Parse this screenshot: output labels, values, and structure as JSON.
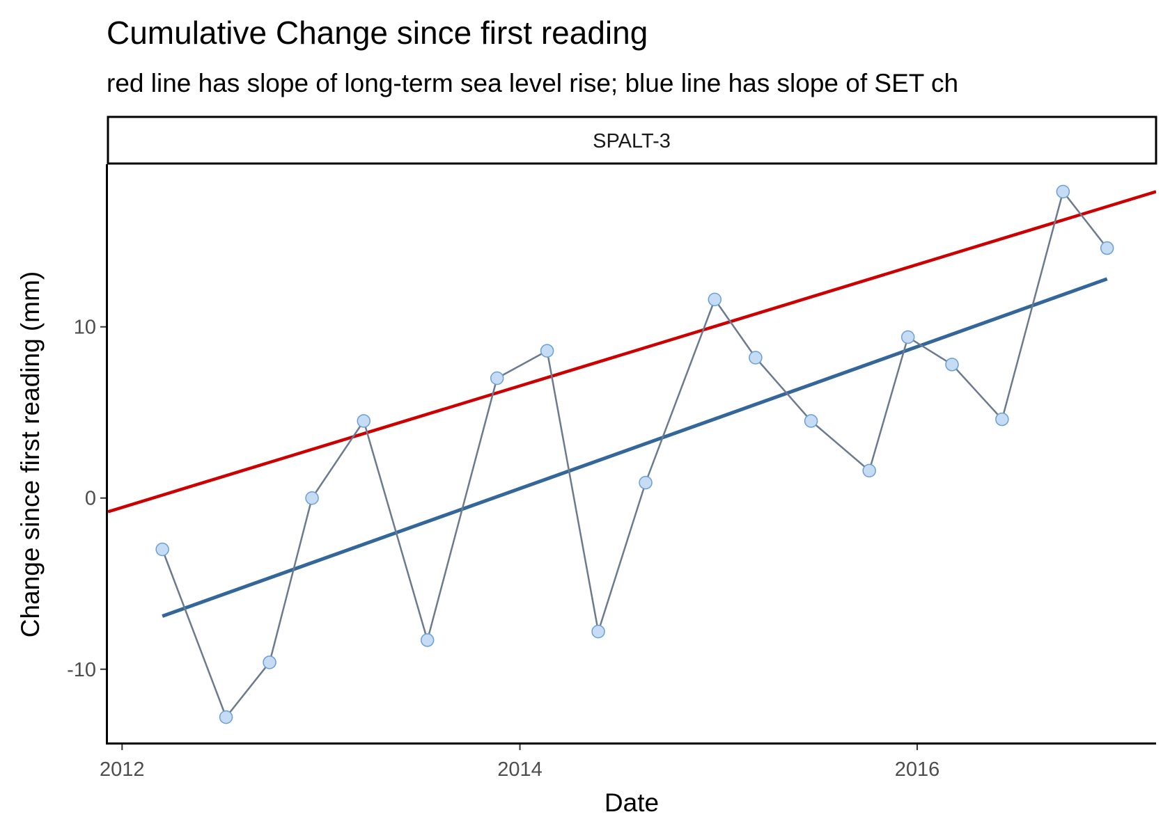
{
  "chart_data": {
    "type": "line",
    "title": "Cumulative Change since first reading",
    "subtitle": "red line has slope of long-term sea level rise; blue line has slope of SET ch",
    "facet_label": "SPALT-3",
    "xlabel": "Date",
    "ylabel": "Change since first reading (mm)",
    "x_ticks": [
      "2012",
      "2014",
      "2016"
    ],
    "y_ticks": [
      -10,
      0,
      10
    ],
    "xlim": [
      "2011-12-06",
      "2017-03-15"
    ],
    "ylim": [
      -14.4,
      19.5
    ],
    "grid": false,
    "legend": "none",
    "colors": {
      "readings_line": "#6b7a8f",
      "readings_point_fill": "#c6dcf5",
      "readings_point_stroke": "#6a9fd4",
      "sea_level_line": "#cc0000",
      "set_trend_line": "#336699",
      "panel_border": "#000000",
      "tick_text": "#4d4d4d"
    },
    "series": [
      {
        "x": [
          "2012-03-15",
          "2012-07-10",
          "2012-09-28",
          "2012-12-15",
          "2013-03-20",
          "2013-07-15",
          "2013-11-20",
          "2014-02-20",
          "2014-05-25",
          "2014-08-20",
          "2014-12-25",
          "2015-03-10",
          "2015-06-20",
          "2015-10-05",
          "2015-12-15",
          "2016-03-05",
          "2016-06-05",
          "2016-09-25",
          "2016-12-15"
        ],
        "y": [
          -3.0,
          -12.8,
          -9.6,
          0.0,
          4.5,
          -8.3,
          7.0,
          8.6,
          -7.8,
          0.9,
          11.6,
          8.2,
          4.5,
          1.6,
          9.4,
          7.8,
          4.6,
          17.9,
          14.6
        ]
      },
      {
        "x": [
          "2011-12-06",
          "2017-03-15"
        ],
        "y": [
          -0.8,
          17.9
        ]
      },
      {
        "x": [
          "2012-03-15",
          "2016-12-15"
        ],
        "y": [
          -6.9,
          12.8
        ]
      }
    ]
  }
}
